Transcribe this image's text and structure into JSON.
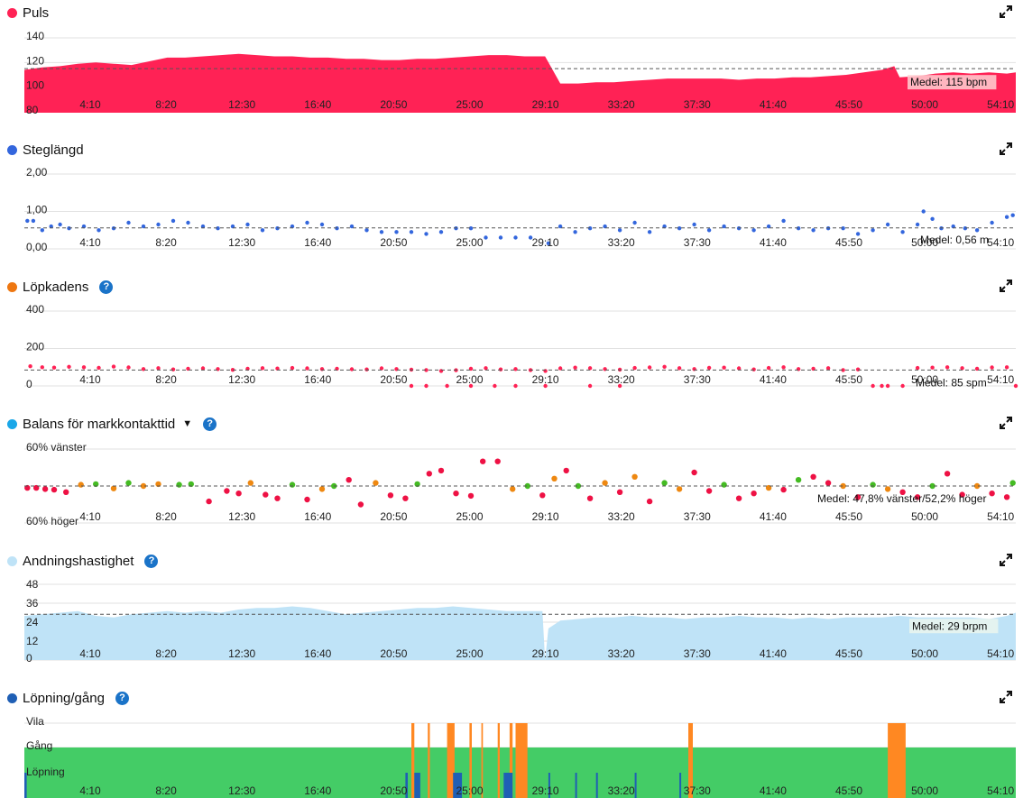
{
  "x_ticks": [
    "4:10",
    "8:20",
    "12:30",
    "16:40",
    "20:50",
    "25:00",
    "29:10",
    "33:20",
    "37:30",
    "41:40",
    "45:50",
    "50:00",
    "54:10"
  ],
  "chart_data": [
    {
      "type": "area",
      "title": "Puls",
      "color": "#ff2255",
      "xlim": [
        0,
        3330
      ],
      "ylim": [
        80,
        140
      ],
      "yticks": [
        "140",
        "120",
        "100",
        "80"
      ],
      "ytick_values": [
        140,
        120,
        100,
        80
      ],
      "mean_value": 115,
      "mean_label": "Medel: 115 bpm",
      "x": [
        0,
        60,
        120,
        180,
        240,
        300,
        360,
        420,
        480,
        540,
        600,
        660,
        720,
        780,
        840,
        900,
        960,
        1020,
        1080,
        1140,
        1200,
        1260,
        1320,
        1380,
        1440,
        1500,
        1560,
        1620,
        1680,
        1740,
        1749,
        1800,
        1860,
        1920,
        1980,
        2040,
        2100,
        2160,
        2220,
        2280,
        2340,
        2400,
        2460,
        2520,
        2580,
        2640,
        2700,
        2760,
        2820,
        2880,
        2922,
        2940,
        3000,
        3060,
        3120,
        3180,
        3240,
        3300,
        3330
      ],
      "y": [
        114,
        116,
        117,
        119,
        120,
        119,
        118,
        121,
        124,
        124,
        125,
        126,
        127,
        126,
        125,
        125,
        124,
        124,
        123,
        123,
        122,
        122,
        123,
        123,
        124,
        125,
        126,
        126,
        125,
        125,
        125,
        103,
        103,
        104,
        104,
        105,
        106,
        107,
        107,
        107,
        107,
        106,
        107,
        107,
        108,
        108,
        109,
        110,
        112,
        114,
        117,
        108,
        109,
        111,
        112,
        111,
        112,
        111,
        112
      ]
    },
    {
      "type": "scatter",
      "title": "Steglängd",
      "color": "#3366dd",
      "xlim": [
        0,
        3330
      ],
      "ylim": [
        0,
        2
      ],
      "yticks": [
        "2,00",
        "1,00",
        "0,00"
      ],
      "ytick_values": [
        2,
        1,
        0
      ],
      "mean_value": 0.56,
      "mean_label": "Medel: 0,56 m",
      "x": [
        10,
        30,
        60,
        90,
        120,
        150,
        200,
        250,
        300,
        350,
        400,
        450,
        500,
        550,
        600,
        650,
        700,
        750,
        800,
        850,
        900,
        950,
        1000,
        1050,
        1100,
        1150,
        1200,
        1250,
        1300,
        1350,
        1400,
        1450,
        1500,
        1550,
        1600,
        1650,
        1700,
        1760,
        1800,
        1850,
        1900,
        1950,
        2000,
        2050,
        2100,
        2150,
        2200,
        2250,
        2300,
        2350,
        2400,
        2450,
        2500,
        2550,
        2600,
        2650,
        2700,
        2750,
        2800,
        2850,
        2900,
        2950,
        3000,
        3020,
        3050,
        3080,
        3120,
        3160,
        3200,
        3250,
        3300,
        3320
      ],
      "y": [
        0.75,
        0.75,
        0.5,
        0.6,
        0.65,
        0.55,
        0.6,
        0.5,
        0.55,
        0.7,
        0.6,
        0.65,
        0.75,
        0.7,
        0.6,
        0.55,
        0.6,
        0.65,
        0.5,
        0.55,
        0.6,
        0.7,
        0.65,
        0.55,
        0.6,
        0.5,
        0.45,
        0.45,
        0.45,
        0.4,
        0.45,
        0.55,
        0.55,
        0.3,
        0.3,
        0.3,
        0.3,
        0.15,
        0.6,
        0.45,
        0.55,
        0.6,
        0.5,
        0.7,
        0.45,
        0.6,
        0.55,
        0.65,
        0.5,
        0.6,
        0.55,
        0.5,
        0.6,
        0.75,
        0.55,
        0.5,
        0.55,
        0.55,
        0.4,
        0.5,
        0.65,
        0.45,
        0.65,
        1.0,
        0.8,
        0.55,
        0.6,
        0.55,
        0.5,
        0.7,
        0.85,
        0.9
      ]
    },
    {
      "type": "scatter",
      "title": "Löpkadens",
      "color": "#ff2255",
      "xlim": [
        0,
        3330
      ],
      "ylim": [
        0,
        400
      ],
      "yticks": [
        "400",
        "200",
        "0"
      ],
      "ytick_values": [
        400,
        200,
        0
      ],
      "mean_value": 85,
      "mean_label": "Medel: 85 spm",
      "x": [
        20,
        60,
        100,
        150,
        200,
        250,
        300,
        350,
        400,
        450,
        500,
        550,
        600,
        650,
        700,
        750,
        800,
        850,
        900,
        950,
        1000,
        1050,
        1100,
        1150,
        1200,
        1250,
        1300,
        1350,
        1400,
        1450,
        1500,
        1550,
        1600,
        1650,
        1700,
        1750,
        1800,
        1850,
        1900,
        1950,
        2000,
        2050,
        2100,
        2150,
        2200,
        2250,
        2300,
        2350,
        2400,
        2450,
        2500,
        2550,
        2600,
        2650,
        2700,
        2750,
        2800,
        2850,
        2880,
        2900,
        2950,
        3000,
        3050,
        3100,
        3150,
        3200,
        3250,
        3300,
        1300,
        1350,
        1420,
        1500,
        1580,
        1650,
        1750,
        1900,
        2000,
        3330
      ],
      "y": [
        105,
        100,
        98,
        102,
        100,
        97,
        103,
        99,
        90,
        95,
        88,
        92,
        94,
        90,
        86,
        92,
        95,
        93,
        96,
        94,
        90,
        92,
        89,
        88,
        94,
        90,
        87,
        85,
        80,
        84,
        92,
        95,
        88,
        90,
        85,
        80,
        94,
        98,
        95,
        90,
        87,
        96,
        99,
        102,
        95,
        90,
        97,
        98,
        94,
        88,
        96,
        100,
        90,
        92,
        95,
        85,
        88,
        0,
        0,
        0,
        0,
        96,
        98,
        100,
        95,
        92,
        99,
        100,
        0,
        0,
        0,
        0,
        0,
        0,
        0,
        0,
        0,
        0
      ]
    },
    {
      "type": "scatter",
      "title": "Balans för markkontakttid",
      "series_colors": [
        "#ee1144",
        "#ee8811",
        "#44bb22"
      ],
      "xlim": [
        0,
        3330
      ],
      "ylim": [
        -60,
        60
      ],
      "yticks": [
        "60% vänster",
        "60% höger"
      ],
      "ytick_values": [
        60,
        -60
      ],
      "mean_value": 0,
      "mean_label": "Medel: 47,8% vänster/52,2% höger",
      "x": [
        10,
        40,
        70,
        100,
        140,
        190,
        240,
        300,
        350,
        400,
        450,
        520,
        560,
        620,
        680,
        720,
        760,
        810,
        850,
        900,
        950,
        1000,
        1040,
        1090,
        1130,
        1180,
        1230,
        1280,
        1320,
        1360,
        1400,
        1450,
        1500,
        1540,
        1590,
        1640,
        1690,
        1740,
        1780,
        1820,
        1860,
        1900,
        1950,
        2000,
        2050,
        2100,
        2150,
        2200,
        2250,
        2300,
        2350,
        2400,
        2450,
        2500,
        2550,
        2600,
        2650,
        2700,
        2750,
        2800,
        2850,
        2900,
        2950,
        3000,
        3050,
        3100,
        3150,
        3200,
        3250,
        3300,
        3320
      ],
      "y": [
        -3,
        -3,
        -5,
        -6,
        -10,
        2,
        3,
        -4,
        5,
        0,
        3,
        2,
        3,
        -25,
        -8,
        -12,
        5,
        -14,
        -20,
        2,
        -22,
        -5,
        0,
        10,
        -30,
        5,
        -15,
        -20,
        3,
        20,
        25,
        -12,
        -16,
        40,
        40,
        -5,
        0,
        -15,
        12,
        25,
        0,
        -20,
        5,
        -10,
        15,
        -25,
        5,
        -5,
        22,
        -8,
        2,
        -20,
        -12,
        -3,
        -6,
        10,
        15,
        5,
        0,
        -18,
        2,
        -5,
        -10,
        -18,
        0,
        20,
        -14,
        0,
        -12,
        -18,
        5
      ],
      "c": [
        0,
        0,
        0,
        0,
        0,
        1,
        2,
        1,
        2,
        1,
        1,
        2,
        2,
        0,
        0,
        0,
        1,
        0,
        0,
        2,
        0,
        1,
        2,
        0,
        0,
        1,
        0,
        0,
        2,
        0,
        0,
        0,
        0,
        0,
        0,
        1,
        2,
        0,
        1,
        0,
        2,
        0,
        1,
        0,
        1,
        0,
        2,
        1,
        0,
        0,
        2,
        0,
        0,
        1,
        0,
        2,
        0,
        0,
        1,
        0,
        2,
        1,
        0,
        0,
        2,
        0,
        0,
        1,
        0,
        0,
        2
      ]
    },
    {
      "type": "area",
      "title": "Andningshastighet",
      "color": "#bfe3f7",
      "xlim": [
        0,
        3330
      ],
      "ylim": [
        0,
        48
      ],
      "yticks": [
        "48",
        "36",
        "24",
        "12",
        "0"
      ],
      "ytick_values": [
        48,
        36,
        24,
        12,
        0
      ],
      "mean_value": 29,
      "mean_label": "Medel: 29 brpm",
      "x": [
        0,
        60,
        120,
        180,
        240,
        300,
        360,
        420,
        480,
        540,
        600,
        660,
        720,
        780,
        840,
        900,
        960,
        1020,
        1080,
        1140,
        1200,
        1260,
        1320,
        1380,
        1440,
        1500,
        1560,
        1620,
        1680,
        1740,
        1749,
        1760,
        1800,
        1860,
        1920,
        1980,
        2040,
        2100,
        2160,
        2220,
        2280,
        2340,
        2400,
        2460,
        2520,
        2580,
        2640,
        2700,
        2760,
        2820,
        2880,
        2940,
        3000,
        3060,
        3120,
        3180,
        3240,
        3300,
        3330
      ],
      "y": [
        28,
        29,
        30,
        31,
        28,
        27,
        29,
        30,
        31,
        30,
        31,
        30,
        32,
        33,
        33,
        34,
        33,
        31,
        29,
        30,
        31,
        32,
        33,
        33,
        34,
        33,
        32,
        31,
        31,
        31,
        0,
        20,
        25,
        26,
        27,
        27,
        28,
        27,
        27,
        26,
        27,
        27,
        28,
        27,
        27,
        26,
        27,
        26,
        27,
        27,
        27,
        28,
        27,
        27,
        27,
        27,
        26,
        28,
        30
      ]
    },
    {
      "type": "bar",
      "title": "Löpning/gång",
      "categories": [
        "Vila",
        "Gång",
        "Löpning"
      ],
      "category_values": [
        2,
        1,
        0
      ],
      "colors": {
        "Vila": "#ff8822",
        "Gång": "#44cc66",
        "Löpning": "#1f5fb5"
      },
      "xlim": [
        0,
        3330
      ],
      "segments": [
        {
          "start": 0,
          "end": 3330,
          "state": "Gång"
        },
        {
          "start": 1300,
          "end": 1310,
          "state": "Vila"
        },
        {
          "start": 1355,
          "end": 1362,
          "state": "Vila"
        },
        {
          "start": 1420,
          "end": 1445,
          "state": "Vila"
        },
        {
          "start": 1495,
          "end": 1503,
          "state": "Vila"
        },
        {
          "start": 1535,
          "end": 1540,
          "state": "Vila"
        },
        {
          "start": 1590,
          "end": 1597,
          "state": "Vila"
        },
        {
          "start": 1630,
          "end": 1640,
          "state": "Vila"
        },
        {
          "start": 1650,
          "end": 1690,
          "state": "Vila"
        },
        {
          "start": 2230,
          "end": 2245,
          "state": "Vila"
        },
        {
          "start": 2900,
          "end": 2960,
          "state": "Vila"
        },
        {
          "start": 0,
          "end": 8,
          "state": "Löpning"
        },
        {
          "start": 1280,
          "end": 1288,
          "state": "Löpning"
        },
        {
          "start": 1310,
          "end": 1330,
          "state": "Löpning"
        },
        {
          "start": 1440,
          "end": 1470,
          "state": "Löpning"
        },
        {
          "start": 1610,
          "end": 1640,
          "state": "Löpning"
        },
        {
          "start": 1760,
          "end": 1766,
          "state": "Löpning"
        },
        {
          "start": 1850,
          "end": 1856,
          "state": "Löpning"
        },
        {
          "start": 1920,
          "end": 1926,
          "state": "Löpning"
        },
        {
          "start": 2050,
          "end": 2056,
          "state": "Löpning"
        },
        {
          "start": 2200,
          "end": 2206,
          "state": "Löpning"
        }
      ]
    }
  ]
}
